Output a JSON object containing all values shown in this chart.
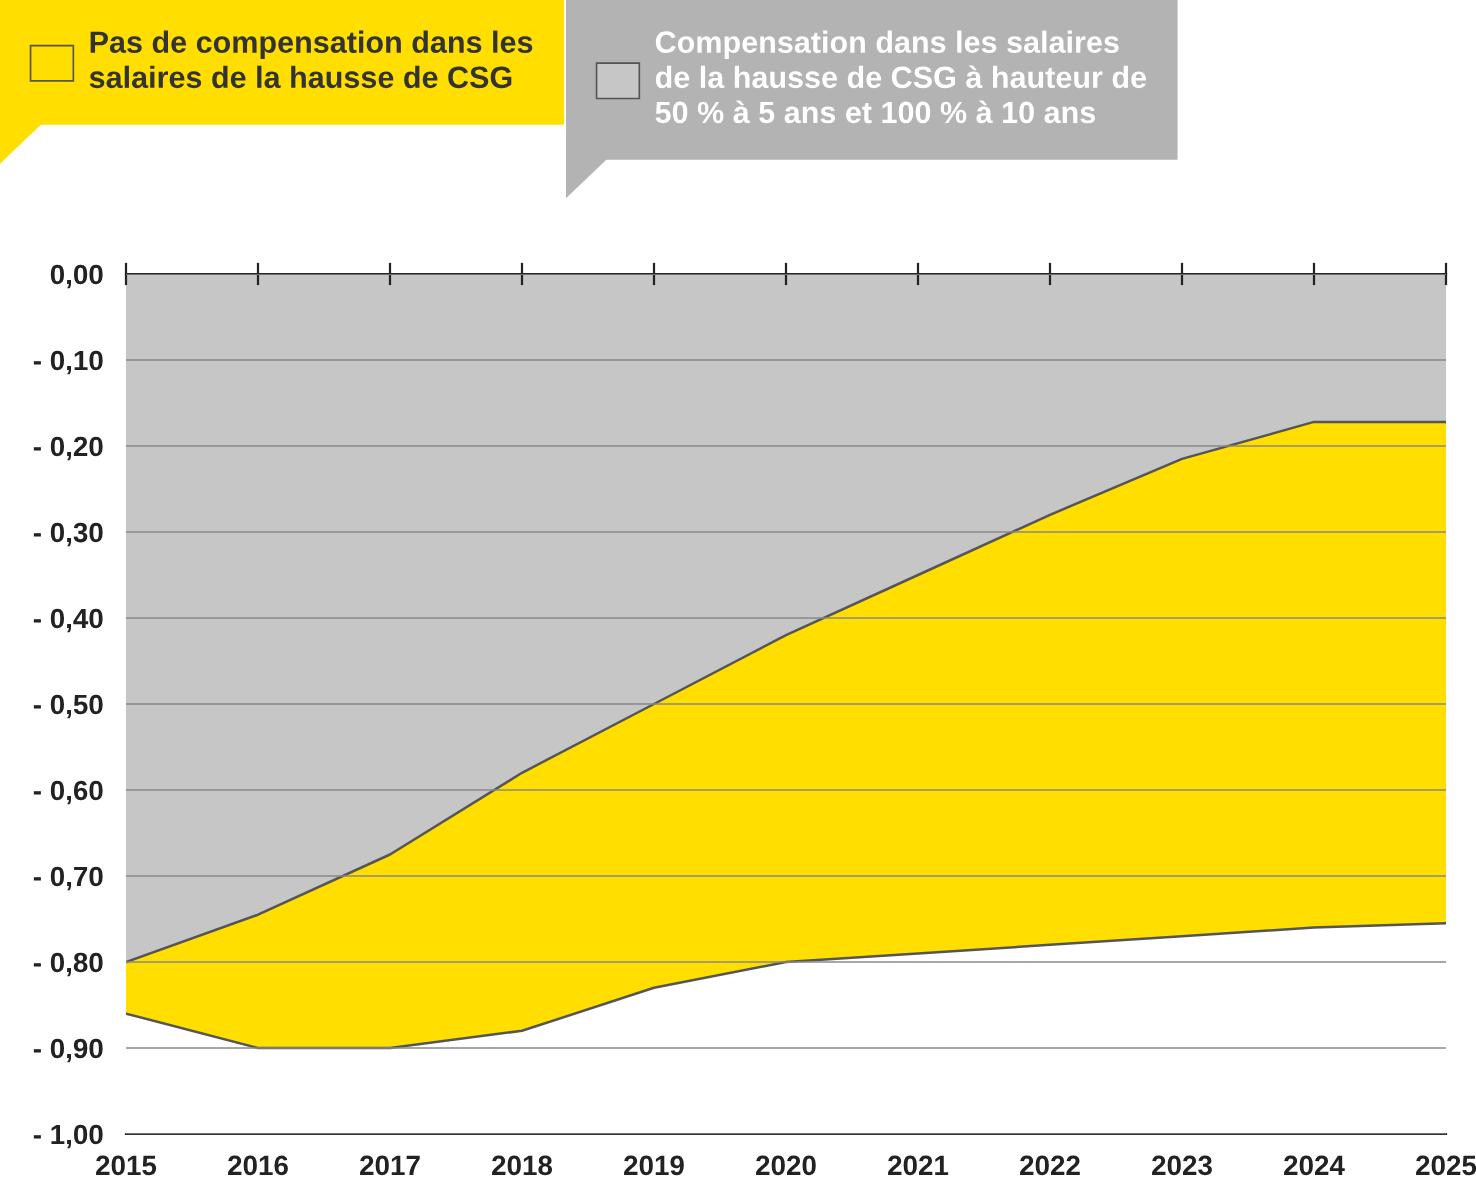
{
  "chart_data": {
    "type": "area",
    "x": [
      2015,
      2016,
      2017,
      2018,
      2019,
      2020,
      2021,
      2022,
      2023,
      2024,
      2025
    ],
    "series": [
      {
        "name": "Pas de compensation dans les salaires de la hausse de CSG",
        "color": "#ffde00",
        "values": [
          -0.86,
          -0.9,
          -0.9,
          -0.88,
          -0.83,
          -0.8,
          -0.79,
          -0.78,
          -0.77,
          -0.76,
          -0.755
        ]
      },
      {
        "name": "Compensation dans les salaires de la hausse de CSG à hauteur de 50 % à 5 ans et 100 % à 10 ans",
        "color": "#c6c6c6",
        "values": [
          -0.8,
          -0.745,
          -0.675,
          -0.58,
          -0.5,
          -0.42,
          -0.35,
          -0.28,
          -0.215,
          -0.172,
          -0.172
        ]
      }
    ],
    "xlim": [
      2015,
      2025
    ],
    "xticks": [
      2015,
      2016,
      2017,
      2018,
      2019,
      2020,
      2021,
      2022,
      2023,
      2024,
      2025
    ],
    "ylim": [
      -1.0,
      0.0
    ],
    "yticks": [
      {
        "value": 0.0,
        "label": "0,00"
      },
      {
        "value": -0.1,
        "label": "- 0,10"
      },
      {
        "value": -0.2,
        "label": "- 0,20"
      },
      {
        "value": -0.3,
        "label": "- 0,30"
      },
      {
        "value": -0.4,
        "label": "- 0,40"
      },
      {
        "value": -0.5,
        "label": "- 0,50"
      },
      {
        "value": -0.6,
        "label": "- 0,60"
      },
      {
        "value": -0.7,
        "label": "- 0,70"
      },
      {
        "value": -0.8,
        "label": "- 0,80"
      },
      {
        "value": -0.9,
        "label": "- 0,90"
      },
      {
        "value": -1.0,
        "label": "- 1,00"
      }
    ],
    "grid": "y",
    "legend": "top left"
  }
}
